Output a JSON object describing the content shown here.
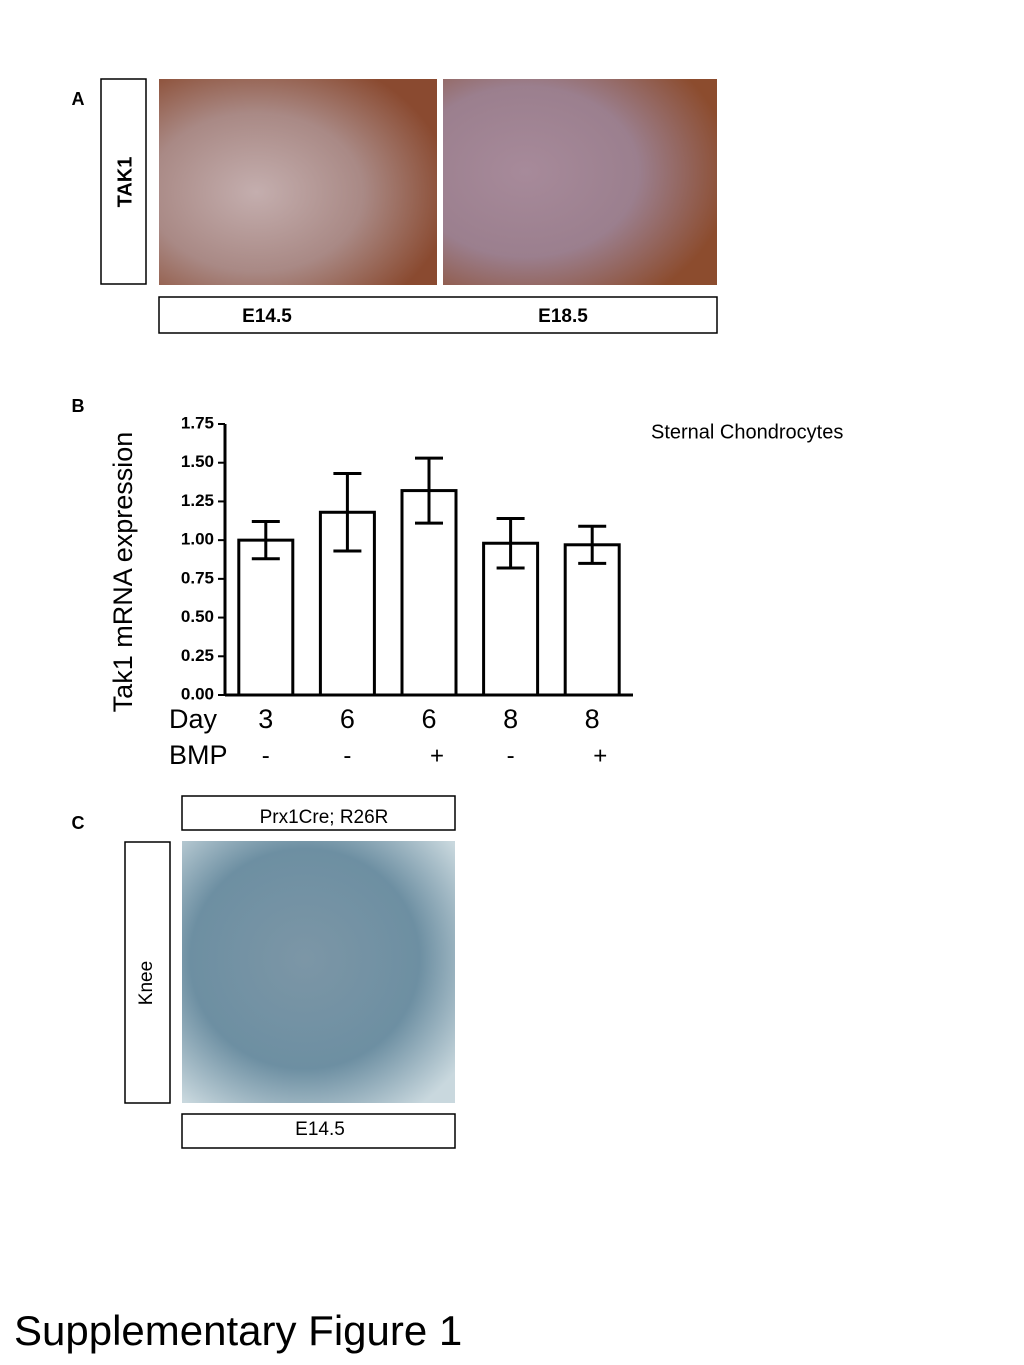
{
  "panel_a": {
    "label": "A",
    "row_label": "TAK1",
    "columns": [
      "E14.5",
      "E18.5"
    ]
  },
  "chart_data": {
    "type": "bar",
    "panel_label": "B",
    "annotation": "Sternal Chondrocytes",
    "y_label": "Tak1  mRNA expression",
    "day_label": "Day",
    "categories": [
      "3",
      "6",
      "6",
      "8",
      "8"
    ],
    "bmp_label": "BMP",
    "bmp": [
      "-",
      "-",
      "+",
      "-",
      "+"
    ],
    "values": [
      1.0,
      1.18,
      1.32,
      0.98,
      0.97
    ],
    "errors": [
      0.12,
      0.25,
      0.21,
      0.16,
      0.12
    ],
    "color": "#ffffff",
    "ylim": [
      0,
      1.75
    ],
    "yticks": [
      {
        "value": 0,
        "label": "0.00"
      },
      0.25,
      {
        "value": 0.5,
        "label": "0.50"
      },
      0.75,
      {
        "value": 1,
        "label": "1.00"
      },
      1.25,
      {
        "value": 1.5,
        "label": "1.50"
      },
      1.75
    ]
  },
  "panel_c": {
    "label": "C",
    "column_label": "Prx1Cre; R26R",
    "row_label": "Knee",
    "stage": "E14.5"
  },
  "caption": "Supplementary Figure 1"
}
